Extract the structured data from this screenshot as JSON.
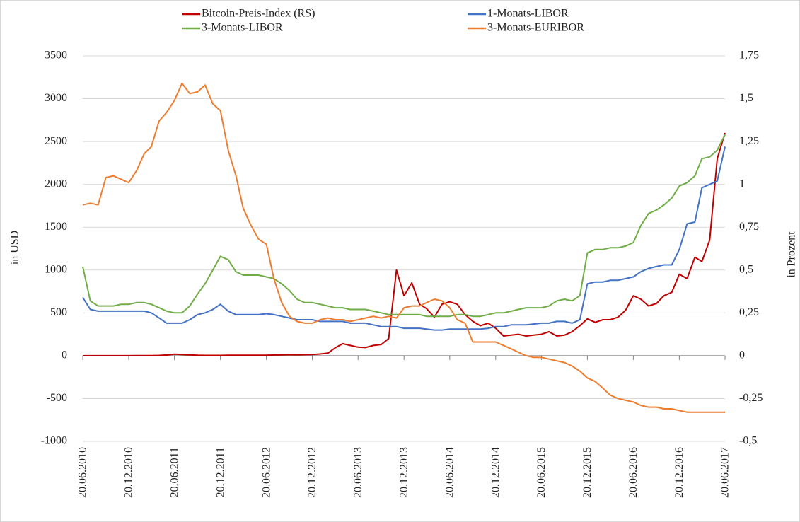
{
  "chart_data": {
    "type": "line",
    "y_label": "in USD",
    "y2_label": "in Prozent",
    "x": [
      "20.06.2010",
      "20.07.2010",
      "20.08.2010",
      "20.09.2010",
      "20.10.2010",
      "20.11.2010",
      "20.12.2010",
      "20.01.2011",
      "20.02.2011",
      "20.03.2011",
      "20.04.2011",
      "20.05.2011",
      "20.06.2011",
      "20.07.2011",
      "20.08.2011",
      "20.09.2011",
      "20.10.2011",
      "20.11.2011",
      "20.12.2011",
      "20.01.2012",
      "20.02.2012",
      "20.03.2012",
      "20.04.2012",
      "20.05.2012",
      "20.06.2012",
      "20.07.2012",
      "20.08.2012",
      "20.09.2012",
      "20.10.2012",
      "20.11.2012",
      "20.12.2012",
      "20.01.2013",
      "20.02.2013",
      "20.03.2013",
      "20.04.2013",
      "20.05.2013",
      "20.06.2013",
      "20.07.2013",
      "20.08.2013",
      "20.09.2013",
      "20.10.2013",
      "20.11.2013",
      "20.12.2013",
      "20.01.2014",
      "20.02.2014",
      "20.03.2014",
      "20.04.2014",
      "20.05.2014",
      "20.06.2014",
      "20.07.2014",
      "20.08.2014",
      "20.09.2014",
      "20.10.2014",
      "20.11.2014",
      "20.12.2014",
      "20.01.2015",
      "20.02.2015",
      "20.03.2015",
      "20.04.2015",
      "20.05.2015",
      "20.06.2015",
      "20.07.2015",
      "20.08.2015",
      "20.09.2015",
      "20.10.2015",
      "20.11.2015",
      "20.12.2015",
      "20.01.2016",
      "20.02.2016",
      "20.03.2016",
      "20.04.2016",
      "20.05.2016",
      "20.06.2016",
      "20.07.2016",
      "20.08.2016",
      "20.09.2016",
      "20.10.2016",
      "20.11.2016",
      "20.12.2016",
      "20.01.2017",
      "20.02.2017",
      "20.03.2017",
      "20.04.2017",
      "20.05.2017",
      "20.06.2017"
    ],
    "xticks": [
      "20.06.2010",
      "20.12.2010",
      "20.06.2011",
      "20.12.2011",
      "20.06.2012",
      "20.12.2012",
      "20.06.2013",
      "20.12.2013",
      "20.06.2014",
      "20.12.2014",
      "20.06.2015",
      "20.12.2015",
      "20.06.2016",
      "20.12.2016",
      "20.06.2017"
    ],
    "ylim": [
      -1000,
      3500
    ],
    "yticks": [
      -1000,
      -500,
      0,
      500,
      1000,
      1500,
      2000,
      2500,
      3000,
      3500
    ],
    "y2lim": [
      -0.5,
      1.75
    ],
    "y2ticks": [
      {
        "value": -0.5,
        "label": "-0,5"
      },
      {
        "value": -0.25,
        "label": "-0,25"
      },
      0,
      {
        "value": 0.25,
        "label": "0,25"
      },
      {
        "value": 0.5,
        "label": "0,5"
      },
      {
        "value": 0.75,
        "label": "0,75"
      },
      1,
      {
        "value": 1.25,
        "label": "1,25"
      },
      {
        "value": 1.5,
        "label": "1,5"
      },
      {
        "value": 1.75,
        "label": "1,75"
      }
    ],
    "grid": true,
    "series": [
      {
        "name": "Bitcoin-Preis-Index (RS)",
        "color": "#c00000",
        "axis": "y",
        "values": [
          0,
          0,
          0,
          0,
          0,
          0,
          0,
          1,
          1,
          1,
          3,
          8,
          17,
          14,
          10,
          5,
          3,
          3,
          3,
          6,
          5,
          5,
          5,
          5,
          6,
          8,
          10,
          12,
          11,
          12,
          13,
          20,
          30,
          90,
          140,
          120,
          100,
          95,
          120,
          130,
          200,
          1000,
          700,
          850,
          600,
          550,
          450,
          600,
          630,
          600,
          480,
          400,
          350,
          380,
          320,
          230,
          240,
          250,
          230,
          240,
          250,
          280,
          230,
          240,
          280,
          350,
          430,
          390,
          420,
          420,
          450,
          530,
          700,
          660,
          580,
          610,
          700,
          740,
          950,
          900,
          1150,
          1100,
          1350,
          2300,
          2600
        ]
      },
      {
        "name": "1-Monats-LIBOR",
        "color": "#4472c4",
        "axis": "y2",
        "values": [
          0.34,
          0.27,
          0.26,
          0.26,
          0.26,
          0.26,
          0.26,
          0.26,
          0.26,
          0.25,
          0.22,
          0.19,
          0.19,
          0.19,
          0.21,
          0.24,
          0.25,
          0.27,
          0.3,
          0.26,
          0.24,
          0.24,
          0.24,
          0.24,
          0.245,
          0.24,
          0.23,
          0.22,
          0.21,
          0.21,
          0.21,
          0.2,
          0.2,
          0.2,
          0.2,
          0.19,
          0.19,
          0.19,
          0.18,
          0.17,
          0.17,
          0.17,
          0.16,
          0.16,
          0.16,
          0.155,
          0.15,
          0.15,
          0.155,
          0.155,
          0.155,
          0.155,
          0.155,
          0.16,
          0.17,
          0.17,
          0.18,
          0.18,
          0.18,
          0.185,
          0.19,
          0.19,
          0.2,
          0.2,
          0.19,
          0.21,
          0.42,
          0.43,
          0.43,
          0.44,
          0.44,
          0.45,
          0.46,
          0.49,
          0.51,
          0.52,
          0.53,
          0.53,
          0.62,
          0.77,
          0.78,
          0.98,
          1.0,
          1.02,
          1.22
        ]
      },
      {
        "name": "3-Monats-LIBOR",
        "color": "#70ad47",
        "axis": "y2",
        "values": [
          0.52,
          0.32,
          0.29,
          0.29,
          0.29,
          0.3,
          0.3,
          0.31,
          0.31,
          0.3,
          0.28,
          0.26,
          0.25,
          0.25,
          0.29,
          0.36,
          0.42,
          0.5,
          0.58,
          0.56,
          0.49,
          0.47,
          0.47,
          0.47,
          0.46,
          0.45,
          0.42,
          0.38,
          0.33,
          0.31,
          0.31,
          0.3,
          0.29,
          0.28,
          0.28,
          0.27,
          0.27,
          0.27,
          0.26,
          0.25,
          0.24,
          0.24,
          0.24,
          0.24,
          0.24,
          0.23,
          0.23,
          0.23,
          0.23,
          0.24,
          0.24,
          0.23,
          0.23,
          0.24,
          0.25,
          0.25,
          0.26,
          0.27,
          0.28,
          0.28,
          0.28,
          0.29,
          0.32,
          0.33,
          0.32,
          0.35,
          0.6,
          0.62,
          0.62,
          0.63,
          0.63,
          0.64,
          0.66,
          0.76,
          0.83,
          0.85,
          0.88,
          0.92,
          0.99,
          1.01,
          1.05,
          1.15,
          1.16,
          1.2,
          1.29
        ]
      },
      {
        "name": "3-Monats-EURIBOR",
        "color": "#ed7d31",
        "axis": "y2",
        "values": [
          0.88,
          0.89,
          0.88,
          1.04,
          1.05,
          1.03,
          1.01,
          1.08,
          1.18,
          1.22,
          1.37,
          1.42,
          1.49,
          1.59,
          1.53,
          1.54,
          1.58,
          1.47,
          1.43,
          1.2,
          1.05,
          0.86,
          0.76,
          0.68,
          0.65,
          0.45,
          0.31,
          0.23,
          0.2,
          0.19,
          0.19,
          0.21,
          0.22,
          0.21,
          0.21,
          0.2,
          0.21,
          0.22,
          0.23,
          0.22,
          0.23,
          0.22,
          0.28,
          0.29,
          0.29,
          0.31,
          0.33,
          0.32,
          0.28,
          0.21,
          0.19,
          0.08,
          0.08,
          0.08,
          0.08,
          0.06,
          0.04,
          0.02,
          0,
          -0.01,
          -0.01,
          -0.02,
          -0.03,
          -0.04,
          -0.06,
          -0.09,
          -0.13,
          -0.15,
          -0.19,
          -0.23,
          -0.25,
          -0.26,
          -0.27,
          -0.29,
          -0.3,
          -0.3,
          -0.31,
          -0.31,
          -0.32,
          -0.33,
          -0.33,
          -0.33,
          -0.33,
          -0.33,
          -0.33
        ]
      }
    ]
  }
}
